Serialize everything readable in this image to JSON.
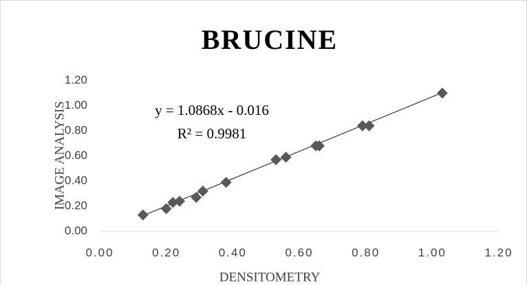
{
  "chart_data": {
    "type": "scatter",
    "title": "BRUCINE",
    "x_label": "DENSITOMETRY",
    "y_label": "IMAGE ANALYSIS",
    "x": [
      0.13,
      0.2,
      0.22,
      0.24,
      0.29,
      0.31,
      0.38,
      0.53,
      0.56,
      0.65,
      0.66,
      0.79,
      0.81,
      1.03
    ],
    "values": [
      0.13,
      0.18,
      0.23,
      0.24,
      0.27,
      0.32,
      0.39,
      0.57,
      0.59,
      0.68,
      0.68,
      0.84,
      0.84,
      1.1
    ],
    "color": "#595959",
    "xlim": [
      0,
      1.2
    ],
    "ylim": [
      0,
      1.2
    ],
    "xticks": [
      {
        "value": 0,
        "label": "0.00"
      },
      {
        "value": 0.2,
        "label": "0.20"
      },
      {
        "value": 0.4,
        "label": "0.40"
      },
      {
        "value": 0.6,
        "label": "0.60"
      },
      {
        "value": 0.8,
        "label": "0.80"
      },
      {
        "value": 1.0,
        "label": "1.00"
      },
      {
        "value": 1.2,
        "label": "1.20"
      }
    ],
    "yticks": [
      {
        "value": 0,
        "label": "0.00"
      },
      {
        "value": 0.2,
        "label": "0.20"
      },
      {
        "value": 0.4,
        "label": "0.40"
      },
      {
        "value": 0.6,
        "label": "0.60"
      },
      {
        "value": 0.8,
        "label": "0.80"
      },
      {
        "value": 1.0,
        "label": "1.00"
      },
      {
        "value": 1.2,
        "label": "1.20"
      }
    ],
    "grid": false,
    "trendline": {
      "slope": 1.0868,
      "intercept": -0.016,
      "label": "y = 1.0868x - 0.016",
      "r2": 0.9981,
      "r2_label": "R² = 0.9981"
    }
  }
}
